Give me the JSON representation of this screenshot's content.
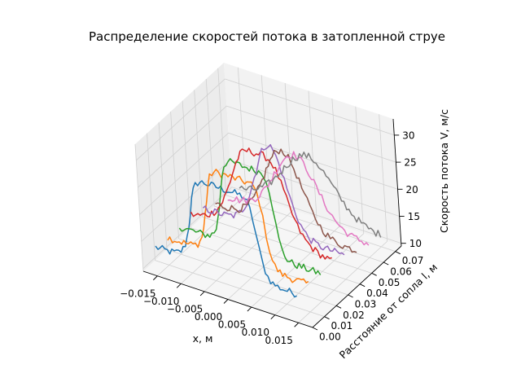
{
  "chart_data": {
    "type": "line",
    "projection": "3d",
    "title": "Распределение скоростей потока в затопленной струе",
    "xlabel": "x, м",
    "ylabel": "Расстояние от сопла l, м",
    "zlabel": "Скорость потока V, м/с",
    "xlim": [
      -0.018,
      0.018
    ],
    "ylim": [
      0.0,
      0.075
    ],
    "zlim": [
      9.5,
      33
    ],
    "xticks": [
      "−0.015",
      "−0.010",
      "−0.005",
      "0.000",
      "0.005",
      "0.010",
      "0.015"
    ],
    "xtick_values": [
      -0.015,
      -0.01,
      -0.005,
      0.0,
      0.005,
      0.01,
      0.015
    ],
    "yticks": [
      "0.00",
      "0.01",
      "0.02",
      "0.03",
      "0.04",
      "0.05",
      "0.06",
      "0.07"
    ],
    "ytick_values": [
      0.0,
      0.01,
      0.02,
      0.03,
      0.04,
      0.05,
      0.06,
      0.07
    ],
    "zticks": [
      "10",
      "15",
      "20",
      "25",
      "30"
    ],
    "ztick_values": [
      10,
      15,
      20,
      25,
      30
    ],
    "grid": true,
    "x_range": [
      -0.015,
      0.015
    ],
    "series": [
      {
        "l": 0.0,
        "color": "#1f77b4",
        "profile": "flat",
        "peak": 30.0,
        "base": 14.8,
        "width": 0.0072
      },
      {
        "l": 0.01,
        "color": "#ff7f0e",
        "profile": "flat",
        "peak": 30.0,
        "base": 14.6,
        "width": 0.0063
      },
      {
        "l": 0.02,
        "color": "#2ca02c",
        "profile": "flat",
        "peak": 30.0,
        "base": 14.6,
        "width": 0.0058
      },
      {
        "l": 0.03,
        "color": "#d62728",
        "profile": "peaked",
        "peak": 30.5,
        "base": 14.3,
        "width": 0.0065
      },
      {
        "l": 0.04,
        "color": "#9467bd",
        "profile": "gauss",
        "peak": 30.0,
        "base": 14.0,
        "width": 0.0058
      },
      {
        "l": 0.05,
        "color": "#8c564b",
        "profile": "gauss",
        "peak": 27.0,
        "base": 12.8,
        "width": 0.007
      },
      {
        "l": 0.06,
        "color": "#e377c2",
        "profile": "gauss",
        "peak": 24.2,
        "base": 12.0,
        "width": 0.008
      },
      {
        "l": 0.07,
        "color": "#7f7f7f",
        "profile": "gauss",
        "peak": 22.0,
        "base": 11.5,
        "width": 0.0095
      }
    ]
  }
}
